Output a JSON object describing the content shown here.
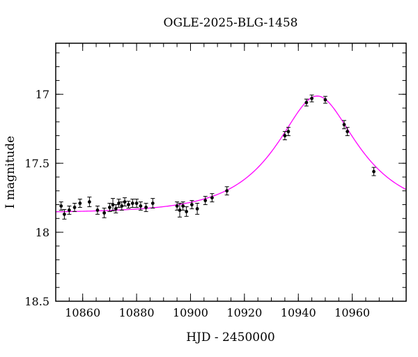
{
  "chart_data": {
    "type": "scatter",
    "title": "OGLE-2025-BLG-1458",
    "xlabel": "HJD - 2450000",
    "ylabel": "I magnitude",
    "x_range": [
      10850,
      10980
    ],
    "y_range_mag": [
      16.63,
      18.5
    ],
    "y_axis_inverted": true,
    "grid": false,
    "legend": "none",
    "x_major_ticks": [
      10860,
      10880,
      10900,
      10920,
      10940,
      10960
    ],
    "x_minor_step": 5,
    "y_major_ticks": [
      17,
      17.5,
      18,
      18.5
    ],
    "y_minor_step": 0.1,
    "colors": {
      "model_curve": "#ff00ff",
      "data_points": "#000000",
      "frame": "#000000",
      "background": "#ffffff"
    },
    "model_curve": {
      "type": "paczynski-microlensing",
      "t0": 10947,
      "tE": 26,
      "u0": 0.5,
      "baseline_I": 17.86,
      "peak_I": 17.01
    },
    "points_format": [
      "hjd_minus_2450000",
      "I_magnitude",
      "error_mag"
    ],
    "points": [
      [
        10852.0,
        17.81,
        0.03
      ],
      [
        10853.2,
        17.87,
        0.035
      ],
      [
        10855.0,
        17.84,
        0.03
      ],
      [
        10857.0,
        17.82,
        0.03
      ],
      [
        10859.0,
        17.79,
        0.03
      ],
      [
        10862.5,
        17.78,
        0.035
      ],
      [
        10865.5,
        17.84,
        0.03
      ],
      [
        10868.0,
        17.86,
        0.035
      ],
      [
        10870.0,
        17.82,
        0.03
      ],
      [
        10871.2,
        17.8,
        0.045
      ],
      [
        10872.3,
        17.83,
        0.03
      ],
      [
        10873.4,
        17.79,
        0.03
      ],
      [
        10874.5,
        17.81,
        0.03
      ],
      [
        10875.6,
        17.78,
        0.03
      ],
      [
        10877.0,
        17.8,
        0.025
      ],
      [
        10878.5,
        17.79,
        0.03
      ],
      [
        10880.0,
        17.79,
        0.03
      ],
      [
        10881.5,
        17.81,
        0.03
      ],
      [
        10883.5,
        17.82,
        0.03
      ],
      [
        10886.0,
        17.79,
        0.035
      ],
      [
        10895.0,
        17.81,
        0.03
      ],
      [
        10896.0,
        17.84,
        0.05
      ],
      [
        10897.2,
        17.81,
        0.03
      ],
      [
        10898.5,
        17.85,
        0.035
      ],
      [
        10900.5,
        17.8,
        0.03
      ],
      [
        10902.5,
        17.83,
        0.04
      ],
      [
        10905.5,
        17.77,
        0.03
      ],
      [
        10908.0,
        17.75,
        0.03
      ],
      [
        10913.5,
        17.7,
        0.03
      ],
      [
        10935.0,
        17.3,
        0.03
      ],
      [
        10936.3,
        17.27,
        0.03
      ],
      [
        10943.0,
        17.06,
        0.025
      ],
      [
        10945.0,
        17.03,
        0.025
      ],
      [
        10950.0,
        17.04,
        0.025
      ],
      [
        10957.0,
        17.22,
        0.03
      ],
      [
        10958.2,
        17.27,
        0.03
      ],
      [
        10968.0,
        17.56,
        0.03
      ]
    ]
  }
}
